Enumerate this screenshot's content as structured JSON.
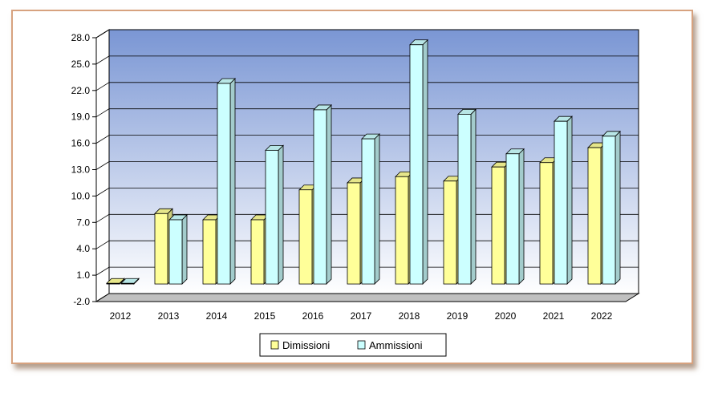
{
  "chart_data": {
    "type": "bar",
    "categories": [
      "2012",
      "2013",
      "2014",
      "2015",
      "2016",
      "2017",
      "2018",
      "2019",
      "2020",
      "2021",
      "2022"
    ],
    "series": [
      {
        "name": "Dimissioni",
        "values": [
          0.0,
          8.0,
          7.3,
          7.3,
          10.7,
          11.5,
          12.2,
          11.7,
          13.3,
          13.8,
          15.5
        ],
        "color": "#ffff99"
      },
      {
        "name": "Ammissioni",
        "values": [
          0.0,
          7.3,
          22.8,
          15.2,
          19.8,
          16.5,
          27.2,
          19.3,
          14.8,
          18.5,
          16.8
        ],
        "color": "#ccffff"
      }
    ],
    "ylim": [
      -2,
      28
    ],
    "yticks": [
      "-2.0",
      "1.0",
      "4.0",
      "7.0",
      "10.0",
      "13.0",
      "16.0",
      "19.0",
      "22.0",
      "25.0",
      "28.0"
    ],
    "grid": true,
    "legend_position": "bottom-center",
    "title": "",
    "xlabel": "",
    "ylabel": ""
  }
}
